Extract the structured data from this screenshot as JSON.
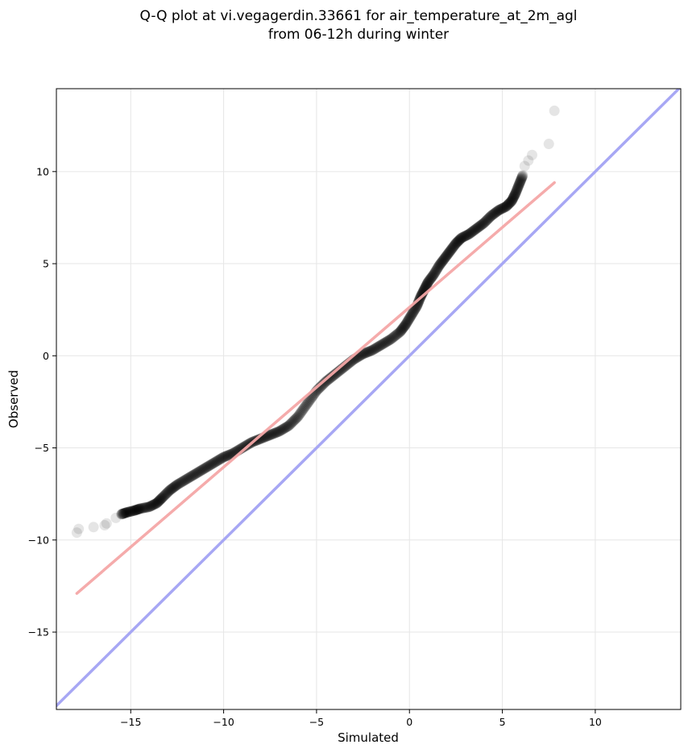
{
  "chart_data": {
    "type": "scatter",
    "title": "Q-Q plot at vi.vegagerdin.33661 for air_temperature_at_2m_agl",
    "subtitle": "from 06-12h during winter",
    "xlabel": "Simulated",
    "ylabel": "Observed",
    "xlim": [
      -19.0,
      14.6
    ],
    "ylim": [
      -19.2,
      14.5
    ],
    "xticks": [
      -15,
      -10,
      -5,
      0,
      5,
      10
    ],
    "yticks": [
      -15,
      -10,
      -5,
      0,
      5,
      10
    ],
    "xtick_labels": [
      "−15",
      "−10",
      "−5",
      "0",
      "5",
      "10"
    ],
    "ytick_labels": [
      "−15",
      "−10",
      "−5",
      "0",
      "5",
      "10"
    ],
    "grid": true,
    "legend": "none",
    "colors": {
      "points": "#000000",
      "fit_line": "#f4a6a6",
      "identity_line": "#a7a7f4",
      "grid": "#e6e6e6"
    },
    "qq_curve": [
      [
        -17.9,
        -9.6
      ],
      [
        -17.8,
        -9.4
      ],
      [
        -17.0,
        -9.3
      ],
      [
        -16.4,
        -9.2
      ],
      [
        -16.3,
        -9.1
      ],
      [
        -15.8,
        -8.8
      ],
      [
        -15.5,
        -8.6
      ],
      [
        -15.2,
        -8.5
      ],
      [
        -14.8,
        -8.4
      ],
      [
        -14.5,
        -8.3
      ],
      [
        -14.0,
        -8.2
      ],
      [
        -13.6,
        -8.0
      ],
      [
        -13.3,
        -7.7
      ],
      [
        -12.9,
        -7.3
      ],
      [
        -12.5,
        -7.0
      ],
      [
        -12.0,
        -6.7
      ],
      [
        -11.5,
        -6.4
      ],
      [
        -11.0,
        -6.1
      ],
      [
        -10.5,
        -5.8
      ],
      [
        -10.0,
        -5.5
      ],
      [
        -9.5,
        -5.3
      ],
      [
        -9.0,
        -5.0
      ],
      [
        -8.5,
        -4.7
      ],
      [
        -8.0,
        -4.5
      ],
      [
        -7.5,
        -4.3
      ],
      [
        -7.0,
        -4.1
      ],
      [
        -6.5,
        -3.8
      ],
      [
        -6.0,
        -3.3
      ],
      [
        -5.5,
        -2.6
      ],
      [
        -5.0,
        -1.9
      ],
      [
        -4.5,
        -1.4
      ],
      [
        -4.0,
        -1.0
      ],
      [
        -3.5,
        -0.6
      ],
      [
        -3.0,
        -0.2
      ],
      [
        -2.5,
        0.1
      ],
      [
        -2.0,
        0.3
      ],
      [
        -1.5,
        0.6
      ],
      [
        -1.0,
        0.9
      ],
      [
        -0.5,
        1.3
      ],
      [
        -0.2,
        1.7
      ],
      [
        0.1,
        2.2
      ],
      [
        0.4,
        2.7
      ],
      [
        0.6,
        3.2
      ],
      [
        0.8,
        3.6
      ],
      [
        1.0,
        4.0
      ],
      [
        1.3,
        4.4
      ],
      [
        1.6,
        4.9
      ],
      [
        1.9,
        5.3
      ],
      [
        2.2,
        5.7
      ],
      [
        2.5,
        6.1
      ],
      [
        2.8,
        6.4
      ],
      [
        3.2,
        6.6
      ],
      [
        3.6,
        6.9
      ],
      [
        4.0,
        7.2
      ],
      [
        4.4,
        7.6
      ],
      [
        4.8,
        7.9
      ],
      [
        5.2,
        8.1
      ],
      [
        5.5,
        8.4
      ],
      [
        5.7,
        8.8
      ],
      [
        5.9,
        9.3
      ],
      [
        6.1,
        9.8
      ],
      [
        6.2,
        10.3
      ],
      [
        6.4,
        10.6
      ],
      [
        6.6,
        10.9
      ],
      [
        7.5,
        11.5
      ],
      [
        7.8,
        13.3
      ]
    ],
    "fit_line": {
      "x": [
        -17.9,
        7.8
      ],
      "y": [
        -12.9,
        9.4
      ]
    },
    "identity_line": {
      "x": [
        -19.0,
        14.6
      ],
      "y": [
        -19.0,
        14.6
      ]
    }
  }
}
